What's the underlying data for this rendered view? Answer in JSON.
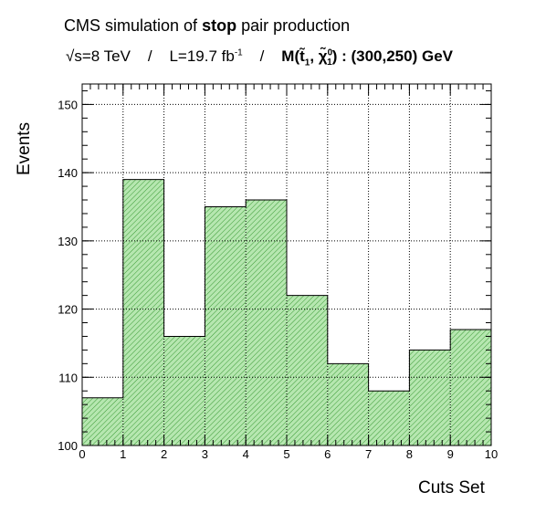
{
  "header": {
    "title_prefix": "CMS simulation of ",
    "title_bold": "stop",
    "title_suffix": " pair production",
    "sqrt_s": "√s=8 TeV",
    "sep1": "/",
    "lumi": "L=19.7 fb",
    "lumi_exp": "-1",
    "sep2": "/",
    "mass_label": "M(t̃",
    "mass_sub1": "1",
    "mass_mid": ", χ̃",
    "mass_sup": "0",
    "mass_sub2": "1",
    "mass_value": ") : (300,250) GeV"
  },
  "chart_data": {
    "type": "bar",
    "xlabel": "Cuts Set",
    "ylabel": "Events",
    "xlim": [
      0,
      10
    ],
    "ylim": [
      100,
      153
    ],
    "bin_edges": [
      0,
      1,
      2,
      3,
      4,
      5,
      6,
      7,
      8,
      9,
      10
    ],
    "values": [
      107,
      139,
      116,
      135,
      136,
      122,
      112,
      108,
      114,
      117
    ],
    "xticks": [
      "0",
      "1",
      "2",
      "3",
      "4",
      "5",
      "6",
      "7",
      "8",
      "9",
      "10"
    ],
    "yticks": [
      "100",
      "110",
      "120",
      "130",
      "140",
      "150"
    ],
    "grid": true,
    "fill_color": "#b6e7b0",
    "hatch_color": "#3a9a35",
    "line_color": "#000000"
  }
}
